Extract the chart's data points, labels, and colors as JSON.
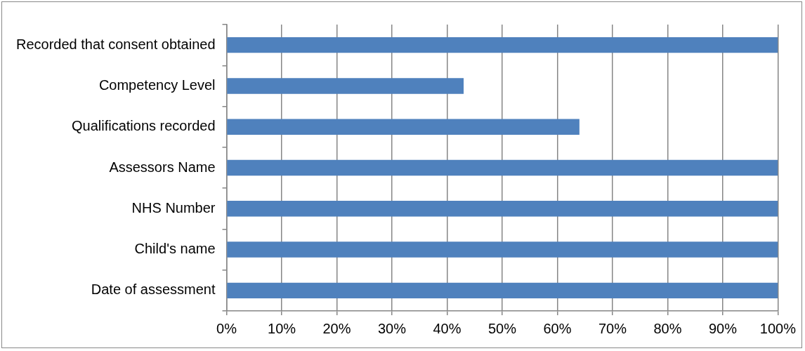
{
  "chart_data": {
    "type": "bar",
    "orientation": "horizontal",
    "categories": [
      "Recorded that consent obtained",
      "Competency Level",
      "Qualifications recorded",
      "Assessors Name",
      "NHS Number",
      "Child's name",
      "Date of assessment"
    ],
    "values": [
      100,
      43,
      64,
      100,
      100,
      100,
      100
    ],
    "color": "#4f81bd",
    "xlim": [
      0,
      100
    ],
    "xticks": [
      {
        "value": 0,
        "label": "0%"
      },
      {
        "value": 10,
        "label": "10%"
      },
      {
        "value": 20,
        "label": "20%"
      },
      {
        "value": 30,
        "label": "30%"
      },
      {
        "value": 40,
        "label": "40%"
      },
      {
        "value": 50,
        "label": "50%"
      },
      {
        "value": 60,
        "label": "60%"
      },
      {
        "value": 70,
        "label": "70%"
      },
      {
        "value": 80,
        "label": "80%"
      },
      {
        "value": 90,
        "label": "90%"
      },
      {
        "value": 100,
        "label": "100%"
      }
    ],
    "grid": "x",
    "legend": false
  }
}
